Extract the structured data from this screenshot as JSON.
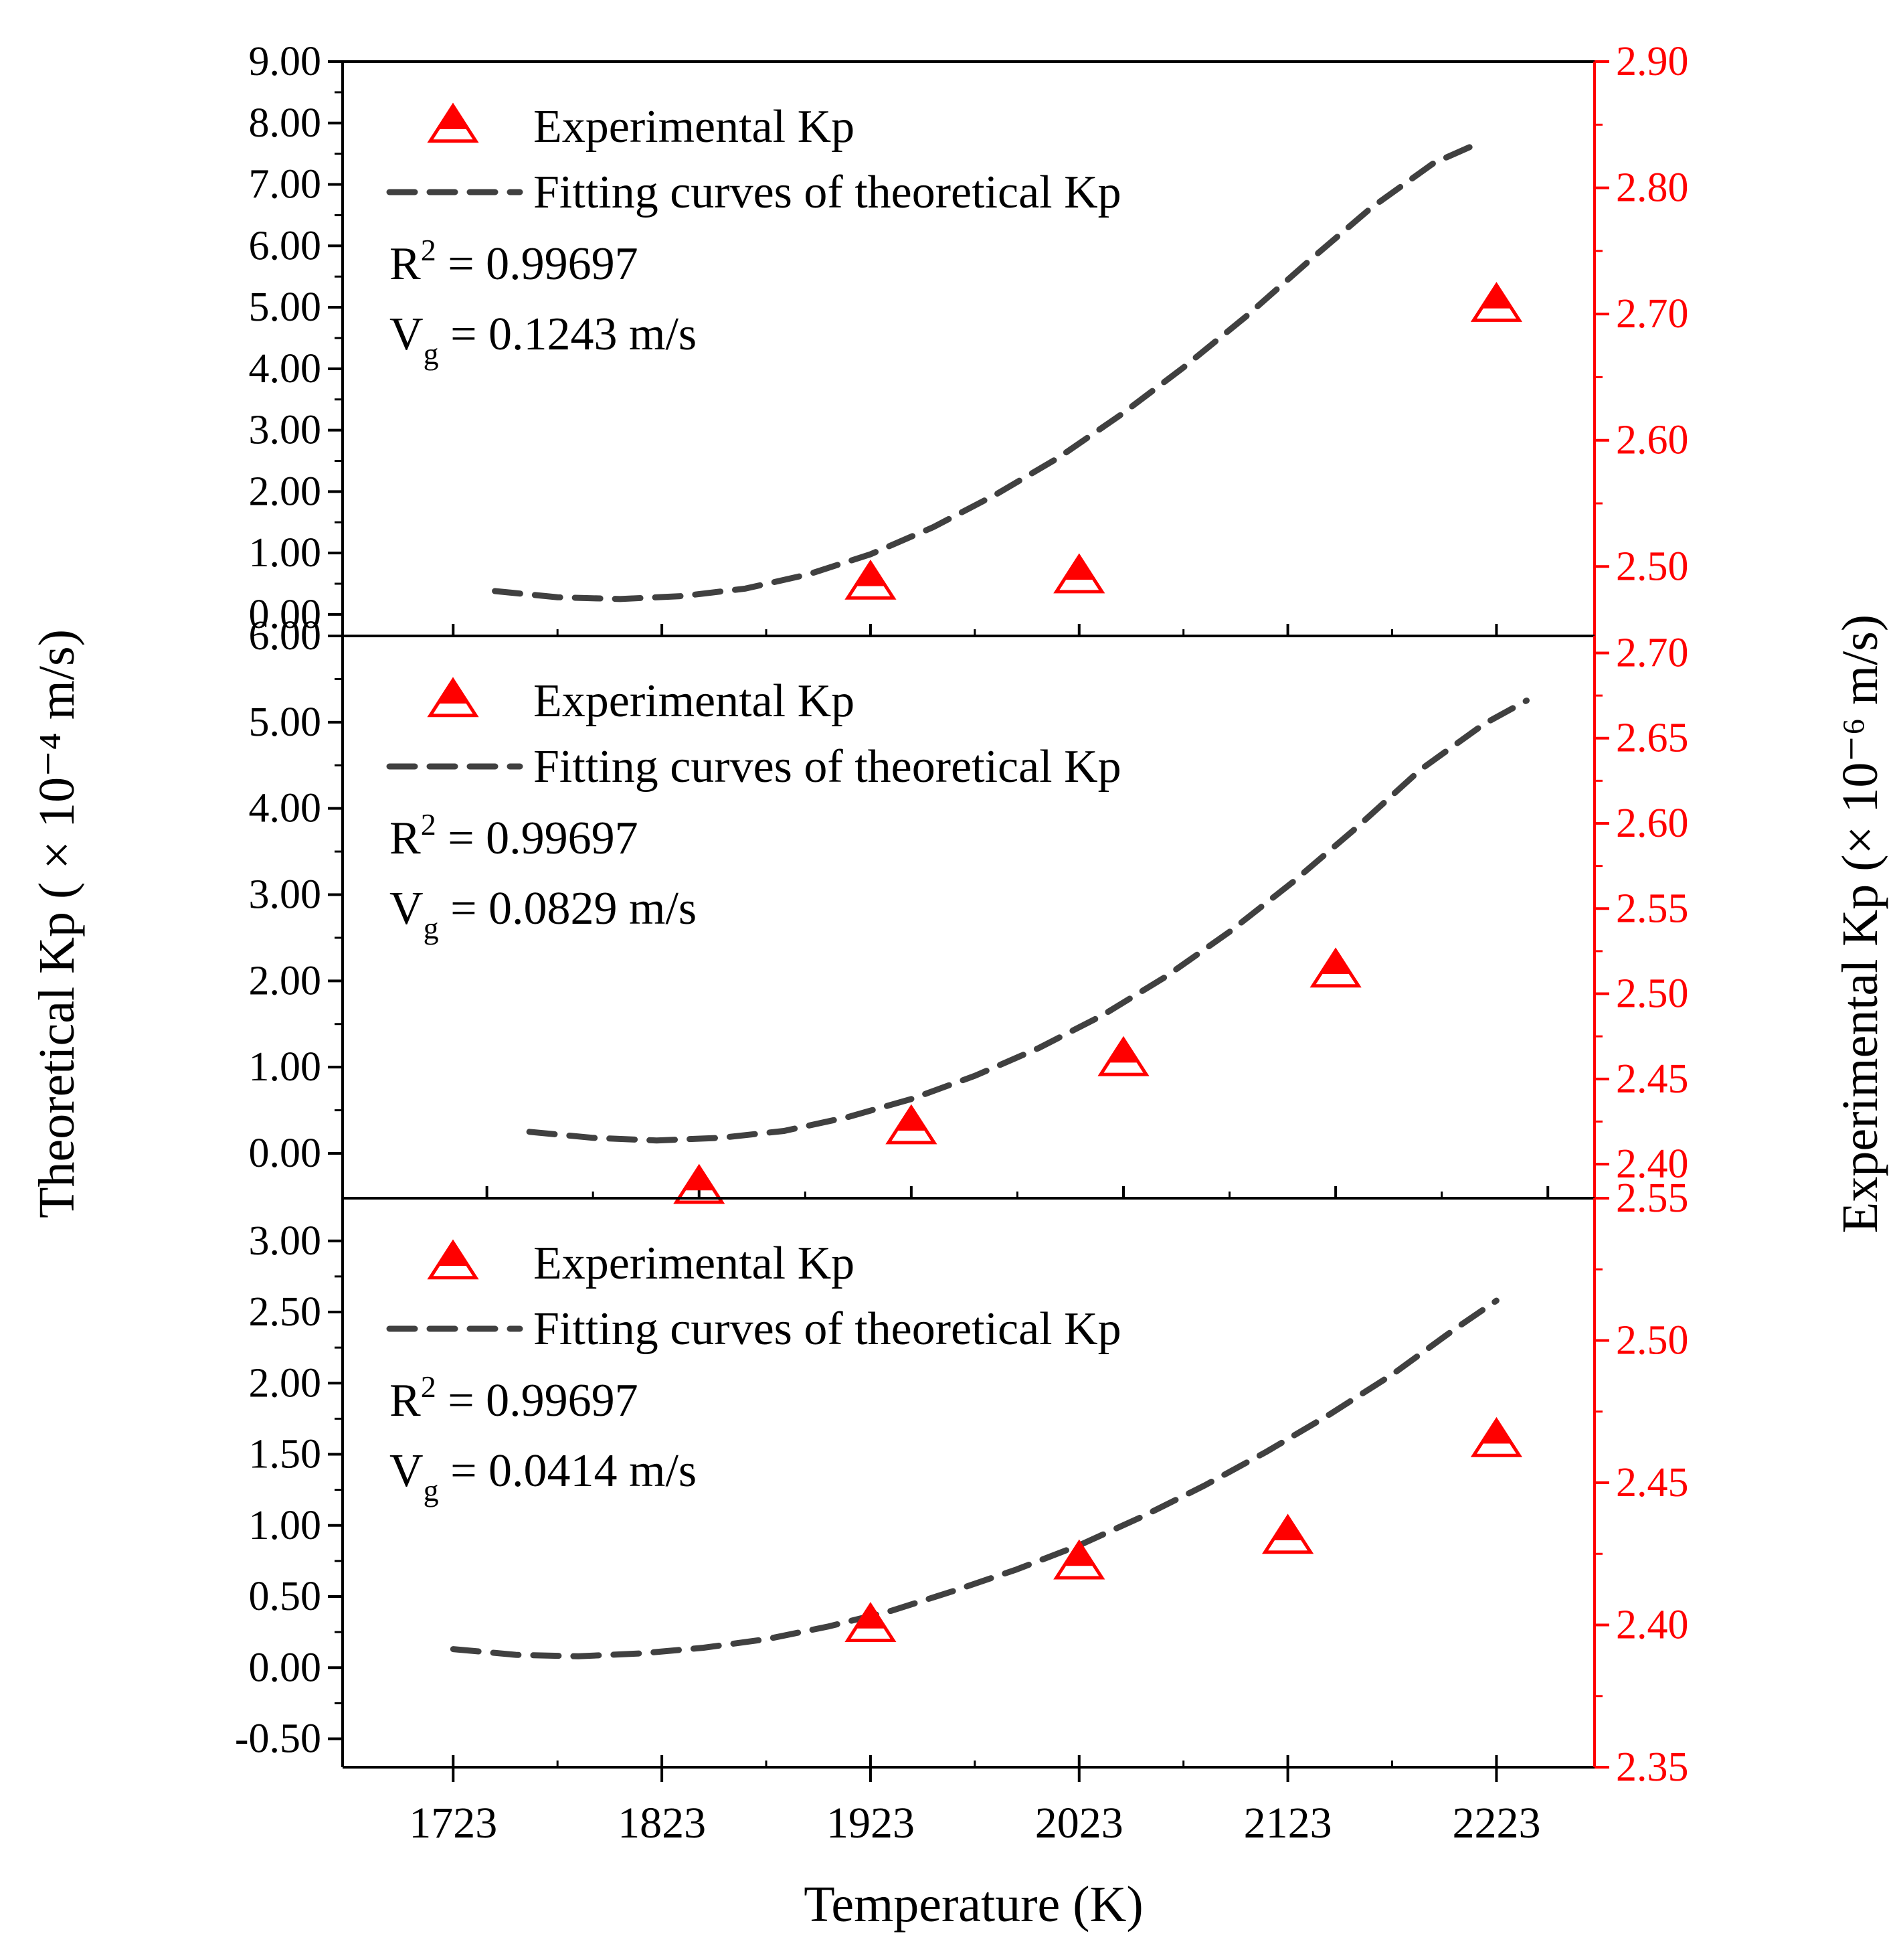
{
  "chart_data": {
    "type": "scatter",
    "xlabel": "Temperature (K)",
    "ylabel_left": "Theoretical Kp ( × 10⁻⁴ m/s)",
    "ylabel_right": "Experimental Kp (× 10⁻⁶ m/s)",
    "x_ticks": [
      "1723",
      "1823",
      "1923",
      "2023",
      "2123",
      "2223"
    ],
    "x_tick_values": [
      1723,
      1823,
      1923,
      2023,
      2123,
      2223
    ],
    "legend": {
      "experimental": "Experimental Kp",
      "fitting": "Fitting curves of theoretical Kp"
    },
    "colors": {
      "experimental": "#ff0000",
      "fitting": "#404040",
      "axis": "#000000",
      "right_axis": "#ff0000"
    },
    "panels": [
      {
        "name": "top",
        "r2_label": "R",
        "r2_exp": "2",
        "r2_value": " = 0.99697",
        "vg_label": "V",
        "vg_sub": "g",
        "vg_value": " = 0.1243 m/s",
        "xlim": [
          1670,
          2270
        ],
        "left_ylim": [
          -0.35,
          9.0
        ],
        "left_ticks": [
          "9.00",
          "8.00",
          "7.00",
          "6.00",
          "5.00",
          "4.00",
          "3.00",
          "2.00",
          "1.00",
          "0.00"
        ],
        "left_tick_values": [
          9,
          8,
          7,
          6,
          5,
          4,
          3,
          2,
          1,
          0
        ],
        "right_ylim": [
          2.445,
          2.9
        ],
        "right_ticks": [
          "2.90",
          "2.80",
          "2.70",
          "2.60",
          "2.50"
        ],
        "right_tick_values": [
          2.9,
          2.8,
          2.7,
          2.6,
          2.5
        ],
        "fit_x": [
          1743,
          1773,
          1803,
          1833,
          1863,
          1893,
          1923,
          1953,
          1983,
          2013,
          2043,
          2073,
          2103,
          2133,
          2163,
          2193,
          2213
        ],
        "fit_y": [
          0.38,
          0.28,
          0.25,
          0.3,
          0.42,
          0.65,
          0.98,
          1.42,
          1.95,
          2.55,
          3.25,
          4.02,
          4.85,
          5.75,
          6.62,
          7.35,
          7.65
        ],
        "exp_x": [
          1923,
          2023,
          2223
        ],
        "exp_y": [
          2.485,
          2.49,
          2.705
        ]
      },
      {
        "name": "middle",
        "r2_label": "R",
        "r2_exp": "2",
        "r2_value": " = 0.99697",
        "vg_label": "V",
        "vg_sub": "g",
        "vg_value": " = 0.0829 m/s",
        "xlim": [
          1655,
          2245
        ],
        "left_ylim": [
          -0.52,
          6.0
        ],
        "left_ticks": [
          "6.00",
          "5.00",
          "4.00",
          "3.00",
          "2.00",
          "1.00",
          "0.00"
        ],
        "left_tick_values": [
          6,
          5,
          4,
          3,
          2,
          1,
          0
        ],
        "right_ylim": [
          2.38,
          2.71
        ],
        "right_ticks": [
          "2.70",
          "2.65",
          "2.60",
          "2.55",
          "2.50",
          "2.45",
          "2.40"
        ],
        "right_tick_values": [
          2.7,
          2.65,
          2.6,
          2.55,
          2.5,
          2.45,
          2.4
        ],
        "fit_x": [
          1743,
          1773,
          1803,
          1833,
          1863,
          1893,
          1923,
          1953,
          1983,
          2013,
          2043,
          2073,
          2103,
          2133,
          2163,
          2193,
          2213
        ],
        "fit_y": [
          0.25,
          0.18,
          0.15,
          0.18,
          0.26,
          0.42,
          0.63,
          0.9,
          1.22,
          1.6,
          2.05,
          2.57,
          3.15,
          3.78,
          4.45,
          4.98,
          5.25
        ],
        "exp_x": [
          1823,
          1923,
          2023,
          2123
        ],
        "exp_y": [
          2.385,
          2.42,
          2.46,
          2.512
        ]
      },
      {
        "name": "bottom",
        "r2_label": "R",
        "r2_exp": "2",
        "r2_value": " = 0.99697",
        "vg_label": "V",
        "vg_sub": "g",
        "vg_value": " = 0.0414 m/s",
        "xlim": [
          1670,
          2270
        ],
        "left_ylim": [
          -0.7,
          3.3
        ],
        "left_ticks": [
          "3.00",
          "2.50",
          "2.00",
          "1.50",
          "1.00",
          "0.50",
          "0.00",
          "-0.50"
        ],
        "left_tick_values": [
          3,
          2.5,
          2,
          1.5,
          1,
          0.5,
          0,
          -0.5
        ],
        "right_ylim": [
          2.35,
          2.55
        ],
        "right_ticks": [
          "2.55",
          "2.50",
          "2.45",
          "2.40",
          "2.35"
        ],
        "right_tick_values": [
          2.55,
          2.5,
          2.45,
          2.4,
          2.35
        ],
        "fit_x": [
          1723,
          1753,
          1783,
          1813,
          1843,
          1873,
          1903,
          1933,
          1963,
          1993,
          2023,
          2053,
          2083,
          2113,
          2143,
          2173,
          2203,
          2223
        ],
        "fit_y": [
          0.13,
          0.09,
          0.08,
          0.1,
          0.14,
          0.2,
          0.29,
          0.4,
          0.54,
          0.69,
          0.86,
          1.06,
          1.28,
          1.52,
          1.78,
          2.06,
          2.38,
          2.58
        ],
        "exp_x": [
          1923,
          2023,
          2123,
          2223
        ],
        "exp_y": [
          2.399,
          2.421,
          2.43,
          2.464
        ]
      }
    ]
  }
}
